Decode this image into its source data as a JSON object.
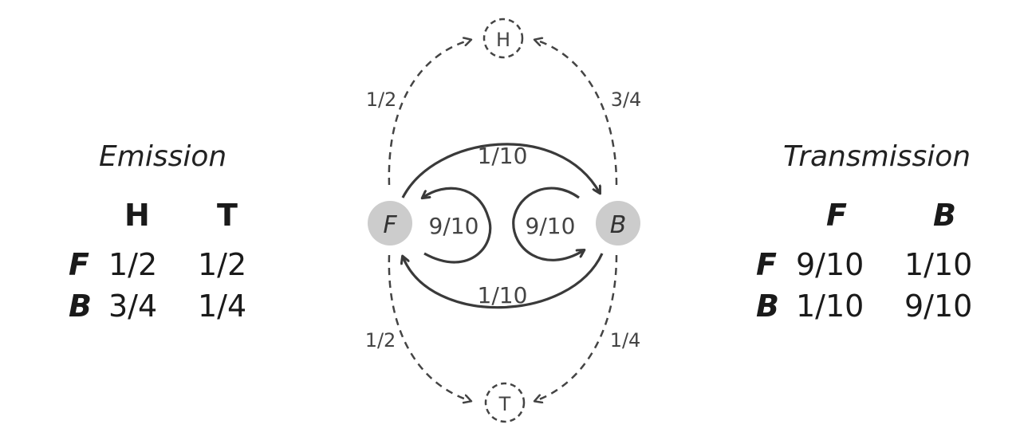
{
  "emission": {
    "title": "Emission",
    "columns": [
      "H",
      "T"
    ],
    "rows": [
      {
        "label": "F",
        "values": [
          "1/2",
          "1/2"
        ]
      },
      {
        "label": "B",
        "values": [
          "3/4",
          "1/4"
        ]
      }
    ]
  },
  "transmission": {
    "title": "Transmission",
    "columns": [
      "F",
      "B"
    ],
    "rows": [
      {
        "label": "F",
        "values": [
          "9/10",
          "1/10"
        ]
      },
      {
        "label": "B",
        "values": [
          "1/10",
          "9/10"
        ]
      }
    ]
  },
  "diagram": {
    "states": {
      "fair": "F",
      "biased": "B"
    },
    "outcomes": {
      "heads": "H",
      "tails": "T"
    },
    "transitions": {
      "f_to_b": "1/10",
      "b_to_f": "1/10",
      "f_self": "9/10",
      "b_self": "9/10"
    },
    "emissions": {
      "f_heads": "1/2",
      "b_heads": "3/4",
      "f_tails": "1/2",
      "b_tails": "1/4"
    },
    "colors": {
      "state_fill": "#cccccc",
      "arrow": "#3a3a3a",
      "dashed": "#444444"
    }
  }
}
